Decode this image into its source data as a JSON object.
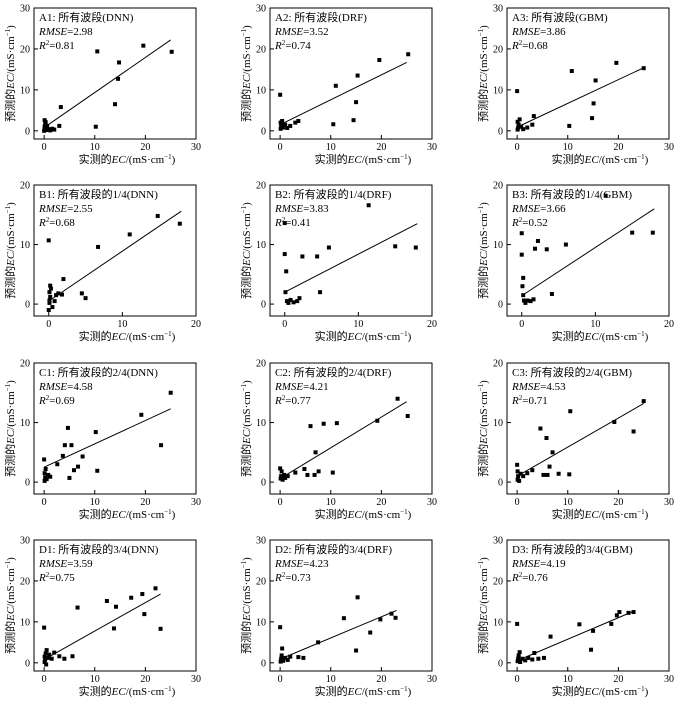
{
  "figure": {
    "y_axis_prefix": "预测的",
    "x_axis_prefix": "实测的",
    "axis_var": "EC",
    "axis_unit": "/(mS·cm",
    "axis_unit_exp": "−1",
    "axis_unit_close": ")",
    "stat1_label": "RMSE",
    "stat2_label": "R",
    "stat2_exp": "2",
    "colors": {
      "points": "#000000",
      "line": "#000000",
      "frame": "#000000"
    }
  },
  "chart_data": [
    {
      "type": "scatter",
      "title": "A1: 所有波段(DNN)",
      "rmse": "2.98",
      "r2": "0.81",
      "xlim": [
        -2,
        30
      ],
      "ylim": [
        -2,
        30
      ],
      "xticks": [
        0,
        10,
        20,
        30
      ],
      "yticks": [
        0,
        10,
        20,
        30
      ],
      "xlabel": "实测的EC/(mS·cm−1)",
      "ylabel": "预测的EC/(mS·cm−1)",
      "points": [
        [
          0,
          0
        ],
        [
          0.1,
          0.3
        ],
        [
          0.2,
          0.5
        ],
        [
          0.1,
          1.0
        ],
        [
          0.2,
          1.5
        ],
        [
          0.3,
          2.1
        ],
        [
          0.1,
          2.6
        ],
        [
          0.4,
          0.2
        ],
        [
          0.5,
          0.8
        ],
        [
          0.6,
          1.2
        ],
        [
          0.8,
          0.4
        ],
        [
          1.2,
          0.1
        ],
        [
          1.6,
          0.5
        ],
        [
          2.0,
          0.3
        ],
        [
          3.0,
          1.2
        ],
        [
          3.3,
          5.8
        ],
        [
          10.2,
          1.0
        ],
        [
          10.5,
          19.4
        ],
        [
          14.0,
          6.5
        ],
        [
          14.6,
          12.7
        ],
        [
          14.8,
          16.7
        ],
        [
          19.6,
          20.8
        ],
        [
          25.2,
          19.3
        ]
      ],
      "fit": [
        [
          0,
          0.8
        ],
        [
          25,
          22.2
        ]
      ]
    },
    {
      "type": "scatter",
      "title": "A2: 所有波段(DRF)",
      "rmse": "3.52",
      "r2": "0.74",
      "xlim": [
        -2,
        30
      ],
      "ylim": [
        -2,
        30
      ],
      "xticks": [
        0,
        10,
        20,
        30
      ],
      "yticks": [
        0,
        10,
        20,
        30
      ],
      "xlabel": "实测的EC/(mS·cm−1)",
      "ylabel": "预测的EC/(mS·cm−1)",
      "points": [
        [
          0,
          8.8
        ],
        [
          0.1,
          0.5
        ],
        [
          0.2,
          1.0
        ],
        [
          0.3,
          1.5
        ],
        [
          0.1,
          2.0
        ],
        [
          0.4,
          2.4
        ],
        [
          0.6,
          0.8
        ],
        [
          1.0,
          1.5
        ],
        [
          1.4,
          0.7
        ],
        [
          2.0,
          1.2
        ],
        [
          3.0,
          2.0
        ],
        [
          3.6,
          2.4
        ],
        [
          10.5,
          1.6
        ],
        [
          11.0,
          11.0
        ],
        [
          14.5,
          2.6
        ],
        [
          15.0,
          7.0
        ],
        [
          15.3,
          13.5
        ],
        [
          19.6,
          17.3
        ],
        [
          25.3,
          18.7
        ]
      ],
      "fit": [
        [
          0,
          1.5
        ],
        [
          25,
          16.7
        ]
      ]
    },
    {
      "type": "scatter",
      "title": "A3: 所有波段(GBM)",
      "rmse": "3.86",
      "r2": "0.68",
      "xlim": [
        -2,
        30
      ],
      "ylim": [
        -2,
        30
      ],
      "xticks": [
        0,
        10,
        20,
        30
      ],
      "yticks": [
        0,
        10,
        20,
        30
      ],
      "xlabel": "实测的EC/(mS·cm−1)",
      "ylabel": "预测的EC/(mS·cm−1)",
      "points": [
        [
          0,
          9.7
        ],
        [
          0.1,
          0.3
        ],
        [
          0.2,
          0.8
        ],
        [
          0.3,
          1.5
        ],
        [
          0.1,
          2.2
        ],
        [
          0.5,
          2.8
        ],
        [
          0.8,
          1.0
        ],
        [
          1.2,
          0.4
        ],
        [
          2.0,
          0.8
        ],
        [
          3.0,
          1.5
        ],
        [
          3.3,
          3.6
        ],
        [
          10.3,
          1.2
        ],
        [
          10.8,
          14.6
        ],
        [
          14.8,
          3.1
        ],
        [
          15.1,
          6.7
        ],
        [
          15.5,
          12.3
        ],
        [
          19.6,
          16.6
        ],
        [
          25.0,
          15.3
        ]
      ],
      "fit": [
        [
          0,
          0.9
        ],
        [
          25,
          15.4
        ]
      ]
    },
    {
      "type": "scatter",
      "title": "B1: 所有波段的1/4(DNN)",
      "rmse": "2.55",
      "r2": "0.68",
      "xlim": [
        -2,
        20
      ],
      "ylim": [
        -2,
        20
      ],
      "xticks": [
        0,
        10,
        20
      ],
      "yticks": [
        0,
        10,
        20
      ],
      "xlabel": "实测的EC/(mS·cm−1)",
      "ylabel": "预测的EC/(mS·cm−1)",
      "points": [
        [
          0,
          10.7
        ],
        [
          0,
          -1.0
        ],
        [
          0.1,
          0.2
        ],
        [
          0.1,
          0.6
        ],
        [
          0.2,
          1.2
        ],
        [
          0.1,
          2.0
        ],
        [
          0.3,
          2.6
        ],
        [
          0.2,
          3.1
        ],
        [
          0.5,
          -0.5
        ],
        [
          0.8,
          0.5
        ],
        [
          1.0,
          1.5
        ],
        [
          1.3,
          1.8
        ],
        [
          1.8,
          1.6
        ],
        [
          2.0,
          4.2
        ],
        [
          4.5,
          1.8
        ],
        [
          5.0,
          1.0
        ],
        [
          6.7,
          9.6
        ],
        [
          11.0,
          11.7
        ],
        [
          14.8,
          14.8
        ],
        [
          17.8,
          13.5
        ]
      ],
      "fit": [
        [
          0,
          0.5
        ],
        [
          18,
          15.6
        ]
      ]
    },
    {
      "type": "scatter",
      "title": "B2: 所有波段的1/4(DRF)",
      "rmse": "3.83",
      "r2": "0.41",
      "xlim": [
        -2,
        20
      ],
      "ylim": [
        -2,
        20
      ],
      "xticks": [
        0,
        10,
        20
      ],
      "yticks": [
        0,
        10,
        20
      ],
      "xlabel": "实测的EC/(mS·cm−1)",
      "ylabel": "预测的EC/(mS·cm−1)",
      "points": [
        [
          0,
          13.6
        ],
        [
          0,
          8.4
        ],
        [
          0.2,
          5.5
        ],
        [
          0.1,
          2.0
        ],
        [
          0.3,
          0.5
        ],
        [
          0.5,
          0.2
        ],
        [
          0.8,
          0.7
        ],
        [
          1.2,
          0.3
        ],
        [
          1.7,
          0.5
        ],
        [
          2.0,
          1.0
        ],
        [
          2.4,
          8.0
        ],
        [
          4.4,
          8.0
        ],
        [
          4.8,
          2.0
        ],
        [
          6.0,
          9.5
        ],
        [
          11.4,
          16.6
        ],
        [
          15.0,
          9.7
        ],
        [
          17.8,
          9.5
        ]
      ],
      "fit": [
        [
          0,
          2.0
        ],
        [
          18,
          13.5
        ]
      ]
    },
    {
      "type": "scatter",
      "title": "B3: 所有波段的1/4(GBM)",
      "rmse": "3.66",
      "r2": "0.52",
      "xlim": [
        -2,
        20
      ],
      "ylim": [
        -2,
        20
      ],
      "xticks": [
        0,
        10,
        20
      ],
      "yticks": [
        0,
        10,
        20
      ],
      "xlabel": "实测的EC/(mS·cm−1)",
      "ylabel": "预测的EC/(mS·cm−1)",
      "points": [
        [
          0,
          11.9
        ],
        [
          0,
          8.3
        ],
        [
          0.2,
          4.4
        ],
        [
          0.1,
          3.0
        ],
        [
          0.2,
          1.5
        ],
        [
          0.3,
          0.6
        ],
        [
          0.5,
          0.2
        ],
        [
          0.8,
          0.6
        ],
        [
          1.2,
          0.5
        ],
        [
          1.6,
          0.8
        ],
        [
          1.8,
          9.3
        ],
        [
          2.2,
          10.6
        ],
        [
          3.4,
          9.2
        ],
        [
          4.1,
          1.7
        ],
        [
          6.0,
          10.0
        ],
        [
          11.4,
          18.2
        ],
        [
          15.0,
          12.0
        ],
        [
          17.8,
          12.0
        ]
      ],
      "fit": [
        [
          0,
          1.4
        ],
        [
          18,
          16.0
        ]
      ]
    },
    {
      "type": "scatter",
      "title": "C1: 所有波段的2/4(DNN)",
      "rmse": "4.58",
      "r2": "0.69",
      "xlim": [
        -2,
        30
      ],
      "ylim": [
        -2,
        20
      ],
      "xticks": [
        0,
        10,
        20,
        30
      ],
      "yticks": [
        0,
        10,
        20
      ],
      "xlabel": "实测的EC/(mS·cm−1)",
      "ylabel": "预测的EC/(mS·cm−1)",
      "points": [
        [
          0,
          3.8
        ],
        [
          0.1,
          0.2
        ],
        [
          0.2,
          0.8
        ],
        [
          0.1,
          1.5
        ],
        [
          0.3,
          2.2
        ],
        [
          0.5,
          0.5
        ],
        [
          0.8,
          1.2
        ],
        [
          1.2,
          0.9
        ],
        [
          2.6,
          3.0
        ],
        [
          3.7,
          4.4
        ],
        [
          4.1,
          6.2
        ],
        [
          4.7,
          9.1
        ],
        [
          5.0,
          0.7
        ],
        [
          5.4,
          6.2
        ],
        [
          5.9,
          2.0
        ],
        [
          6.7,
          2.6
        ],
        [
          7.6,
          4.3
        ],
        [
          10.2,
          8.4
        ],
        [
          10.5,
          1.9
        ],
        [
          19.2,
          11.3
        ],
        [
          23.1,
          6.2
        ],
        [
          25.0,
          15.0
        ]
      ],
      "fit": [
        [
          0,
          2.5
        ],
        [
          25,
          12.3
        ]
      ]
    },
    {
      "type": "scatter",
      "title": "C2: 所有波段的2/4(DRF)",
      "rmse": "4.21",
      "r2": "0.77",
      "xlim": [
        -2,
        30
      ],
      "ylim": [
        -2,
        20
      ],
      "xticks": [
        0,
        10,
        20,
        30
      ],
      "yticks": [
        0,
        10,
        20
      ],
      "xlabel": "实测的EC/(mS·cm−1)",
      "ylabel": "预测的EC/(mS·cm−1)",
      "points": [
        [
          0,
          2.3
        ],
        [
          0.1,
          0.6
        ],
        [
          0.2,
          1.0
        ],
        [
          0.3,
          1.8
        ],
        [
          0.5,
          0.4
        ],
        [
          0.8,
          1.2
        ],
        [
          1.0,
          0.7
        ],
        [
          1.5,
          1.0
        ],
        [
          3.0,
          1.6
        ],
        [
          4.8,
          2.2
        ],
        [
          5.4,
          1.2
        ],
        [
          6.0,
          9.4
        ],
        [
          6.8,
          1.2
        ],
        [
          7.0,
          5.0
        ],
        [
          7.6,
          1.8
        ],
        [
          8.6,
          9.8
        ],
        [
          10.4,
          1.6
        ],
        [
          11.2,
          9.9
        ],
        [
          19.2,
          10.3
        ],
        [
          23.2,
          14.0
        ],
        [
          25.2,
          11.1
        ]
      ],
      "fit": [
        [
          0,
          0.6
        ],
        [
          25,
          13.5
        ]
      ]
    },
    {
      "type": "scatter",
      "title": "C3: 所有波段的2/4(GBM)",
      "rmse": "4.53",
      "r2": "0.71",
      "xlim": [
        -2,
        30
      ],
      "ylim": [
        -2,
        20
      ],
      "xticks": [
        0,
        10,
        20,
        30
      ],
      "yticks": [
        0,
        10,
        20
      ],
      "xlabel": "实测的EC/(mS·cm−1)",
      "ylabel": "预测的EC/(mS·cm−1)",
      "points": [
        [
          0,
          2.9
        ],
        [
          0.1,
          0.4
        ],
        [
          0.2,
          1.0
        ],
        [
          0.1,
          1.8
        ],
        [
          0.4,
          0.2
        ],
        [
          0.7,
          1.4
        ],
        [
          1.2,
          1.0
        ],
        [
          2.0,
          1.5
        ],
        [
          3.0,
          2.0
        ],
        [
          4.6,
          9.0
        ],
        [
          5.2,
          1.2
        ],
        [
          5.8,
          7.4
        ],
        [
          6.0,
          1.2
        ],
        [
          6.4,
          2.6
        ],
        [
          7.0,
          5.0
        ],
        [
          8.2,
          1.4
        ],
        [
          10.5,
          11.9
        ],
        [
          10.3,
          1.3
        ],
        [
          19.2,
          10.1
        ],
        [
          23.0,
          8.5
        ],
        [
          25.0,
          13.6
        ]
      ],
      "fit": [
        [
          0,
          1.0
        ],
        [
          25,
          13.2
        ]
      ]
    },
    {
      "type": "scatter",
      "title": "D1: 所有波段的3/4(DNN)",
      "rmse": "3.59",
      "r2": "0.75",
      "xlim": [
        -2,
        30
      ],
      "ylim": [
        -2,
        30
      ],
      "xticks": [
        0,
        10,
        20,
        30
      ],
      "yticks": [
        0,
        10,
        20,
        30
      ],
      "xlabel": "实测的EC/(mS·cm−1)",
      "ylabel": "预测的EC/(mS·cm−1)",
      "points": [
        [
          0,
          8.6
        ],
        [
          0.1,
          0.2
        ],
        [
          0.2,
          0.8
        ],
        [
          0.1,
          1.5
        ],
        [
          0.3,
          2.3
        ],
        [
          0.5,
          3.1
        ],
        [
          0.4,
          -0.4
        ],
        [
          0.8,
          1.2
        ],
        [
          1.0,
          2.0
        ],
        [
          1.5,
          1.0
        ],
        [
          2.0,
          2.5
        ],
        [
          3.0,
          1.6
        ],
        [
          4.0,
          1.0
        ],
        [
          5.6,
          1.6
        ],
        [
          6.6,
          13.5
        ],
        [
          12.4,
          15.1
        ],
        [
          13.8,
          8.4
        ],
        [
          14.2,
          13.7
        ],
        [
          17.2,
          15.9
        ],
        [
          19.4,
          16.8
        ],
        [
          19.8,
          11.9
        ],
        [
          22.0,
          18.2
        ],
        [
          23.0,
          8.3
        ]
      ],
      "fit": [
        [
          0,
          0.8
        ],
        [
          23,
          16.8
        ]
      ]
    },
    {
      "type": "scatter",
      "title": "D2: 所有波段的3/4(DRF)",
      "rmse": "4.23",
      "r2": "0.73",
      "xlim": [
        -2,
        30
      ],
      "ylim": [
        -2,
        30
      ],
      "xticks": [
        0,
        10,
        20,
        30
      ],
      "yticks": [
        0,
        10,
        20,
        30
      ],
      "xlabel": "实测的EC/(mS·cm−1)",
      "ylabel": "预测的EC/(mS·cm−1)",
      "points": [
        [
          0,
          8.7
        ],
        [
          0.1,
          0.3
        ],
        [
          0.2,
          1.0
        ],
        [
          0.3,
          1.8
        ],
        [
          0.4,
          3.5
        ],
        [
          0.6,
          0.5
        ],
        [
          1.0,
          1.2
        ],
        [
          1.5,
          0.7
        ],
        [
          2.0,
          1.5
        ],
        [
          3.6,
          1.4
        ],
        [
          4.6,
          1.2
        ],
        [
          7.5,
          5.0
        ],
        [
          12.6,
          10.9
        ],
        [
          15.0,
          3.0
        ],
        [
          15.3,
          16.0
        ],
        [
          17.8,
          7.4
        ],
        [
          19.8,
          10.6
        ],
        [
          22.0,
          12.0
        ],
        [
          22.8,
          11.0
        ]
      ],
      "fit": [
        [
          0,
          0.9
        ],
        [
          23,
          12.8
        ]
      ]
    },
    {
      "type": "scatter",
      "title": "D3: 所有波段的3/4(GBM)",
      "rmse": "4.19",
      "r2": "0.76",
      "xlim": [
        -2,
        30
      ],
      "ylim": [
        -2,
        30
      ],
      "xticks": [
        0,
        10,
        20,
        30
      ],
      "yticks": [
        0,
        10,
        20,
        30
      ],
      "xlabel": "实测的EC/(mS·cm−1)",
      "ylabel": "预测的EC/(mS·cm−1)",
      "points": [
        [
          0,
          9.5
        ],
        [
          0.1,
          0.4
        ],
        [
          0.2,
          1.0
        ],
        [
          0.3,
          1.8
        ],
        [
          0.5,
          2.6
        ],
        [
          0.6,
          0.2
        ],
        [
          1.0,
          1.0
        ],
        [
          1.6,
          0.6
        ],
        [
          2.2,
          1.2
        ],
        [
          3.0,
          0.8
        ],
        [
          3.4,
          2.4
        ],
        [
          4.2,
          1.0
        ],
        [
          5.3,
          1.2
        ],
        [
          6.6,
          6.4
        ],
        [
          12.3,
          9.4
        ],
        [
          14.6,
          3.2
        ],
        [
          15.0,
          7.8
        ],
        [
          18.6,
          9.5
        ],
        [
          19.7,
          11.6
        ],
        [
          20.2,
          12.4
        ],
        [
          22.0,
          12.2
        ],
        [
          23.0,
          12.4
        ]
      ],
      "fit": [
        [
          0,
          0.5
        ],
        [
          23,
          12.6
        ]
      ]
    }
  ]
}
